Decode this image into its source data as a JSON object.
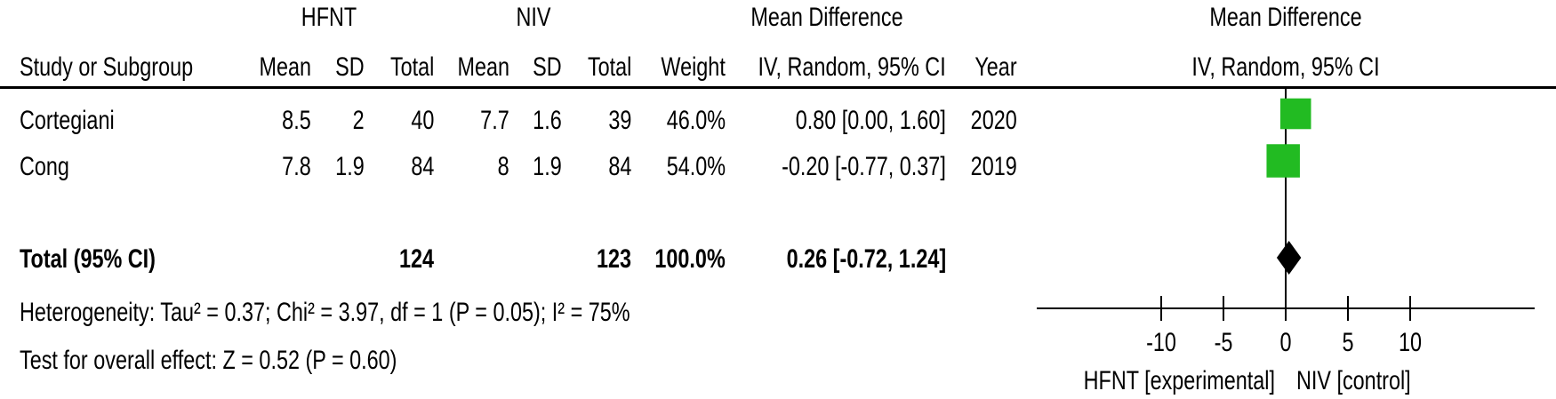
{
  "table": {
    "group_headers": {
      "experimental": "HFNT",
      "control": "NIV",
      "effect": "Mean Difference",
      "plot": "Mean Difference"
    },
    "columns": {
      "study": "Study or Subgroup",
      "exp_mean": "Mean",
      "exp_sd": "SD",
      "exp_total": "Total",
      "ctl_mean": "Mean",
      "ctl_sd": "SD",
      "ctl_total": "Total",
      "weight": "Weight",
      "effect": "IV, Random, 95% CI",
      "year": "Year",
      "plot": "IV, Random, 95% CI"
    },
    "rows": [
      {
        "study": "Cortegiani",
        "exp_mean": "8.5",
        "exp_sd": "2",
        "exp_total": "40",
        "ctl_mean": "7.7",
        "ctl_sd": "1.6",
        "ctl_total": "39",
        "weight": "46.0%",
        "effect": "0.80 [0.00, 1.60]",
        "year": "2020"
      },
      {
        "study": "Cong",
        "exp_mean": "7.8",
        "exp_sd": "1.9",
        "exp_total": "84",
        "ctl_mean": "8",
        "ctl_sd": "1.9",
        "ctl_total": "84",
        "weight": "54.0%",
        "effect": "-0.20 [-0.77, 0.37]",
        "year": "2019"
      }
    ],
    "total": {
      "label": "Total (95% CI)",
      "exp_total": "124",
      "ctl_total": "123",
      "weight": "100.0%",
      "effect": "0.26 [-0.72, 1.24]"
    },
    "heterogeneity": "Heterogeneity: Tau² = 0.37; Chi² = 3.97, df = 1 (P = 0.05); I² = 75%",
    "overall_effect": "Test for overall effect: Z = 0.52 (P = 0.60)"
  },
  "chart_data": {
    "type": "scatter",
    "subtype": "forest-plot",
    "title": "",
    "xlabel_left": "HFNT [experimental]",
    "xlabel_right": "NIV [control]",
    "xlim": [
      -20,
      20
    ],
    "xticks": [
      -10,
      -5,
      0,
      5,
      10
    ],
    "xtick_labels": [
      "-10",
      "-5",
      "0",
      "5",
      "10"
    ],
    "series": [
      {
        "study": "Cortegiani",
        "estimate": 0.8,
        "ci_low": 0.0,
        "ci_high": 1.6,
        "weight": 46.0
      },
      {
        "study": "Cong",
        "estimate": -0.2,
        "ci_low": -0.77,
        "ci_high": 0.37,
        "weight": 54.0
      }
    ],
    "pooled": {
      "estimate": 0.26,
      "ci_low": -0.72,
      "ci_high": 1.24
    },
    "colors": {
      "study_marker": "#22bb22",
      "pooled": "#000000",
      "lines": "#000000"
    }
  }
}
